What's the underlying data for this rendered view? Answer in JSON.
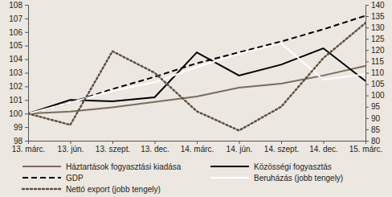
{
  "chart_data": {
    "type": "line",
    "categories": [
      "13. márc.",
      "13. jún.",
      "13. szept.",
      "13. dec.",
      "14. márc.",
      "14. jún.",
      "14. szept.",
      "14. dec.",
      "15. márc."
    ],
    "ylim": [
      98,
      108
    ],
    "yticks": [
      98,
      99,
      100,
      101,
      102,
      103,
      104,
      105,
      106,
      107,
      108
    ],
    "y2lim": [
      80,
      140
    ],
    "y2ticks": [
      80,
      85,
      90,
      95,
      100,
      105,
      110,
      115,
      120,
      125,
      130,
      135,
      140
    ],
    "grid": false,
    "legend": "bottom",
    "series": [
      {
        "name": "Háztartások fogyasztási kiadása",
        "color": "#7a6b5d",
        "line_style": "solid",
        "values": [
          100,
          100.15,
          100.45,
          100.85,
          101.25,
          101.9,
          102.2,
          102.8,
          103.5
        ]
      },
      {
        "name": "Közösségi fogyasztás",
        "color": "#000000",
        "line_style": "solid",
        "values": [
          100,
          101.0,
          100.9,
          101.2,
          104.5,
          102.8,
          103.6,
          104.8,
          102.4
        ]
      },
      {
        "name": "GDP",
        "color": "#000000",
        "line_style": "dashed",
        "values": [
          100,
          100.8,
          101.8,
          102.7,
          103.7,
          104.5,
          105.3,
          106.2,
          107.2
        ]
      },
      {
        "name": "Beruházás (jobb tengely)",
        "color": "#ffffff",
        "line_style": "solid",
        "axis": "y2",
        "values": [
          92,
          96.8,
          102,
          105.8,
          112.5,
          118.4,
          123,
          107,
          109.4
        ]
      },
      {
        "name": "Nettó export (jobb tengely)",
        "color": "#5e5044",
        "line_style": "dotted",
        "axis": "y2",
        "values": [
          92,
          87,
          119.5,
          110,
          93,
          84.5,
          95,
          116.5,
          132
        ]
      }
    ]
  }
}
